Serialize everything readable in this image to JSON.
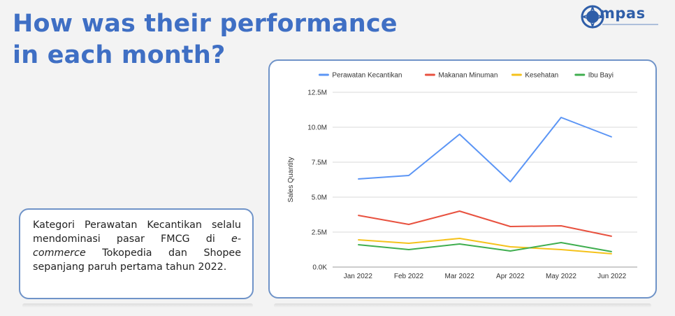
{
  "page": {
    "title_line1": "How was their performance",
    "title_line2": "in each month?",
    "logo_text": "mpas",
    "description_part1": "Kategori Perawatan Kecantikan selalu mendominasi pasar FMCG di ",
    "description_emphasis": "e-commerce",
    "description_part2": " Tokopedia dan Shopee sepanjang paruh pertama tahun 2022."
  },
  "colors": {
    "title": "#3f6fc4",
    "card_border": "#6f93c8"
  },
  "chart_data": {
    "type": "line",
    "title": "",
    "xlabel": "",
    "ylabel": "Sales Quantity",
    "categories": [
      "Jan 2022",
      "Feb 2022",
      "Mar 2022",
      "Apr 2022",
      "May 2022",
      "Jun 2022"
    ],
    "yticks": [
      "0.0K",
      "2.5M",
      "5.0M",
      "7.5M",
      "10.0M",
      "12.5M"
    ],
    "ylim": [
      0,
      12500000
    ],
    "grid": true,
    "legend_position": "top",
    "series": [
      {
        "name": "Perawatan Kecantikan",
        "color": "#5b95f5",
        "values": [
          6300000,
          6550000,
          9500000,
          6100000,
          10700000,
          9300000
        ]
      },
      {
        "name": "Makanan Minuman",
        "color": "#e8513f",
        "values": [
          3700000,
          3050000,
          4000000,
          2900000,
          2950000,
          2200000
        ]
      },
      {
        "name": "Kesehatan",
        "color": "#f5c21b",
        "values": [
          1950000,
          1700000,
          2050000,
          1450000,
          1250000,
          950000
        ]
      },
      {
        "name": "Ibu Bayi",
        "color": "#3fae4f",
        "values": [
          1600000,
          1250000,
          1650000,
          1150000,
          1750000,
          1100000
        ]
      }
    ]
  }
}
